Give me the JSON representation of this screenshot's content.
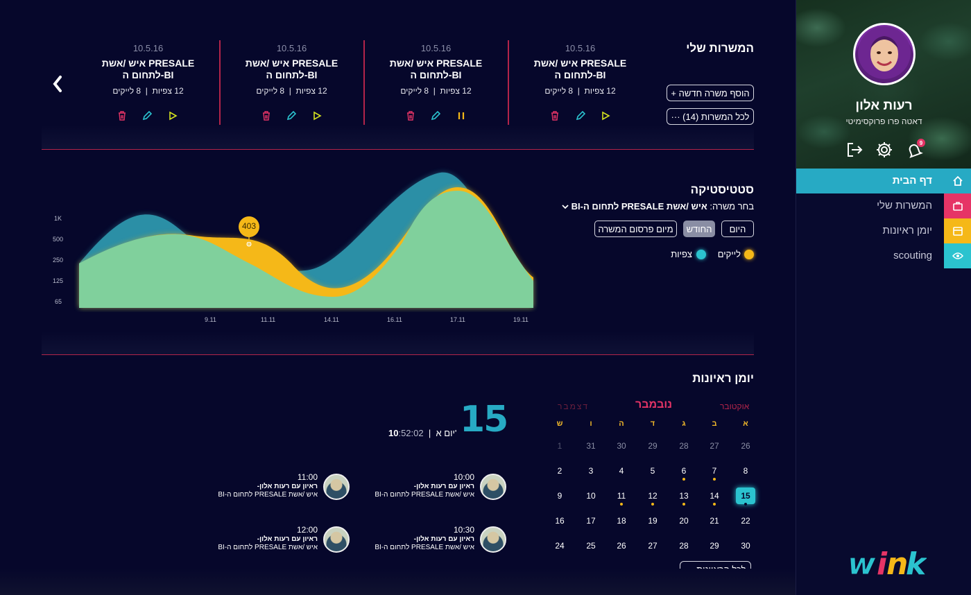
{
  "profile": {
    "name": "רעות אלון",
    "role": "דאטה פרו פרוקסימיטי",
    "notifications": "9"
  },
  "nav": {
    "items": [
      {
        "label": "דף הבית",
        "icon": "home-icon",
        "color": "#27aac4"
      },
      {
        "label": "המשרות שלי",
        "icon": "briefcase-icon",
        "color": "#e63466"
      },
      {
        "label": "יומן ראיונות",
        "icon": "calendar-icon",
        "color": "#f5b818"
      },
      {
        "label": "scouting",
        "icon": "eye-icon",
        "color": "#2bc3cf"
      }
    ]
  },
  "jobs": {
    "title": "המשרות שלי",
    "add_label": "+ הוסף משרה חדשה",
    "all_label": "··· לכל המשרות (14)",
    "cards": [
      {
        "date": "10.5.16",
        "title_line1": "איש /אשת PRESALE",
        "title_line2": "לתחום ה-BI",
        "views": "12 צפיות",
        "likes": "8 לייקים",
        "state": "play"
      },
      {
        "date": "10.5.16",
        "title_line1": "איש /אשת PRESALE",
        "title_line2": "לתחום ה-BI",
        "views": "12 צפיות",
        "likes": "8 לייקים",
        "state": "pause"
      },
      {
        "date": "10.5.16",
        "title_line1": "איש /אשת PRESALE",
        "title_line2": "לתחום ה-BI",
        "views": "12 צפיות",
        "likes": "8 לייקים",
        "state": "play"
      },
      {
        "date": "10.5.16",
        "title_line1": "איש /אשת PRESALE",
        "title_line2": "לתחום ה-BI",
        "views": "12 צפיות",
        "likes": "8 לייקים",
        "state": "play"
      }
    ]
  },
  "stats": {
    "title": "סטטיסטיקה",
    "select_prefix": "בחר משרה:",
    "select_value": "איש /אשת PRESALE לתחום ה-BI",
    "ranges": [
      "היום",
      "החודש",
      "מיום פרסום המשרה"
    ],
    "selected_range": "החודש",
    "legend_likes": "לייקים",
    "legend_views": "צפיות"
  },
  "chart_data": {
    "type": "area",
    "x": [
      "9.11",
      "11.11",
      "14.11",
      "16.11",
      "17.11",
      "19.11"
    ],
    "y_ticks": [
      "1K",
      "500",
      "250",
      "125",
      "65"
    ],
    "series": [
      {
        "name": "צפיות",
        "color": "#2b8fa6"
      },
      {
        "name": "לייקים",
        "color": "#f5b818"
      }
    ],
    "tooltip": "403"
  },
  "calendar": {
    "title": "יומן ראיונות",
    "prev_month": "אוקטובר",
    "month": "נובמבר",
    "next_month": "דצמבר",
    "weekdays": [
      "א",
      "ב",
      "ג",
      "ד",
      "ה",
      "ו",
      "ש"
    ],
    "weeks": [
      [
        "26",
        "27",
        "28",
        "29",
        "30",
        "31",
        "1"
      ],
      [
        "8",
        "7",
        "6",
        "5",
        "4",
        "3",
        "2"
      ],
      [
        "15",
        "14",
        "13",
        "12",
        "11",
        "10",
        "9"
      ],
      [
        "22",
        "21",
        "20",
        "19",
        "18",
        "17",
        "16"
      ],
      [
        "30",
        "29",
        "28",
        "27",
        "26",
        "25",
        "24"
      ]
    ],
    "all_label": "··· לכל הראיונות",
    "selected_day": "15",
    "day_name": "יום א'",
    "time_main": "10",
    "time_rest": ":52:02"
  },
  "events": [
    {
      "time": "10:00",
      "title": "ראיון עם רעות אלון-",
      "job": "איש /אשת PRESALE לתחום ה-BI"
    },
    {
      "time": "11:00",
      "title": "ראיון עם רעות אלון-",
      "job": "איש /אשת PRESALE לתחום ה-BI"
    },
    {
      "time": "10:30",
      "title": "ראיון עם רעות אלון-",
      "job": "איש /אשת PRESALE לתחום ה-BI"
    },
    {
      "time": "12:00",
      "title": "ראיון עם רעות אלון-",
      "job": "איש /אשת PRESALE לתחום ה-BI"
    }
  ],
  "brand": {
    "logo": "wink"
  }
}
